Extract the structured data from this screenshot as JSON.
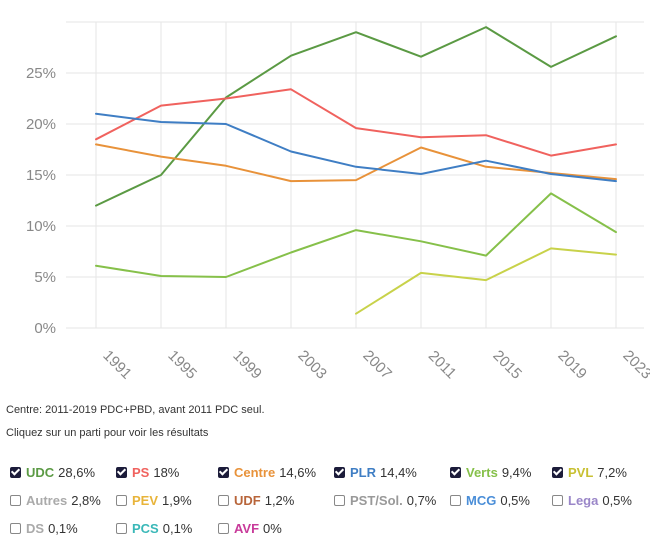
{
  "chart_data": {
    "type": "line",
    "x": [
      "1991",
      "1995",
      "1999",
      "2003",
      "2007",
      "2011",
      "2015",
      "2019",
      "2023"
    ],
    "y_ticks": [
      "0%",
      "5%",
      "10%",
      "15%",
      "20%",
      "25%"
    ],
    "ylim": [
      0,
      30
    ],
    "grid": true,
    "series": [
      {
        "name": "UDC",
        "color": "#5b9a44",
        "values": [
          12.0,
          15.0,
          22.6,
          26.7,
          29.0,
          26.6,
          29.5,
          25.6,
          28.6
        ]
      },
      {
        "name": "PS",
        "color": "#f0625e",
        "values": [
          18.5,
          21.8,
          22.5,
          23.4,
          19.6,
          18.7,
          18.9,
          16.9,
          18.0
        ]
      },
      {
        "name": "Centre",
        "color": "#e8923a",
        "values": [
          18.0,
          16.8,
          15.9,
          14.4,
          14.5,
          17.7,
          15.8,
          15.2,
          14.6
        ]
      },
      {
        "name": "PLR",
        "color": "#3f7ec4",
        "values": [
          21.0,
          20.2,
          20.0,
          17.3,
          15.8,
          15.1,
          16.4,
          15.1,
          14.4
        ]
      },
      {
        "name": "Verts",
        "color": "#86c04a",
        "values": [
          6.1,
          5.1,
          5.0,
          7.4,
          9.6,
          8.5,
          7.1,
          13.2,
          9.4
        ]
      },
      {
        "name": "PVL",
        "color": "#c8d24a",
        "values": [
          null,
          null,
          null,
          null,
          1.4,
          5.4,
          4.7,
          7.8,
          7.2
        ]
      }
    ]
  },
  "notes": {
    "centre": "Centre: 2011-2019 PDC+PBD, avant 2011 PDC seul.",
    "instruction": "Cliquez sur un parti pour voir les résultats"
  },
  "legend": {
    "rows": [
      [
        {
          "name": "UDC",
          "pct": "28,6%",
          "color": "#5b9a44",
          "checked": true
        },
        {
          "name": "PS",
          "pct": "18%",
          "color": "#f0625e",
          "checked": true
        },
        {
          "name": "Centre",
          "pct": "14,6%",
          "color": "#e8923a",
          "checked": true
        },
        {
          "name": "PLR",
          "pct": "14,4%",
          "color": "#3f7ec4",
          "checked": true
        },
        {
          "name": "Verts",
          "pct": "9,4%",
          "color": "#86c04a",
          "checked": true
        },
        {
          "name": "PVL",
          "pct": "7,2%",
          "color": "#c8c032",
          "checked": true
        }
      ],
      [
        {
          "name": "Autres",
          "pct": "2,8%",
          "color": "#aaaaaa",
          "checked": false
        },
        {
          "name": "PEV",
          "pct": "1,9%",
          "color": "#e8b43a",
          "checked": false
        },
        {
          "name": "UDF",
          "pct": "1,2%",
          "color": "#b8653a",
          "checked": false
        },
        {
          "name": "PST/Sol.",
          "pct": "0,7%",
          "color": "#999999",
          "checked": false
        },
        {
          "name": "MCG",
          "pct": "0,5%",
          "color": "#4a8ed8",
          "checked": false
        },
        {
          "name": "Lega",
          "pct": "0,5%",
          "color": "#9a86c8",
          "checked": false
        }
      ],
      [
        {
          "name": "DS",
          "pct": "0,1%",
          "color": "#aaaaaa",
          "checked": false
        },
        {
          "name": "PCS",
          "pct": "0,1%",
          "color": "#3ab8b8",
          "checked": false
        },
        {
          "name": "AVF",
          "pct": "0%",
          "color": "#c83a9a",
          "checked": false
        }
      ]
    ]
  }
}
